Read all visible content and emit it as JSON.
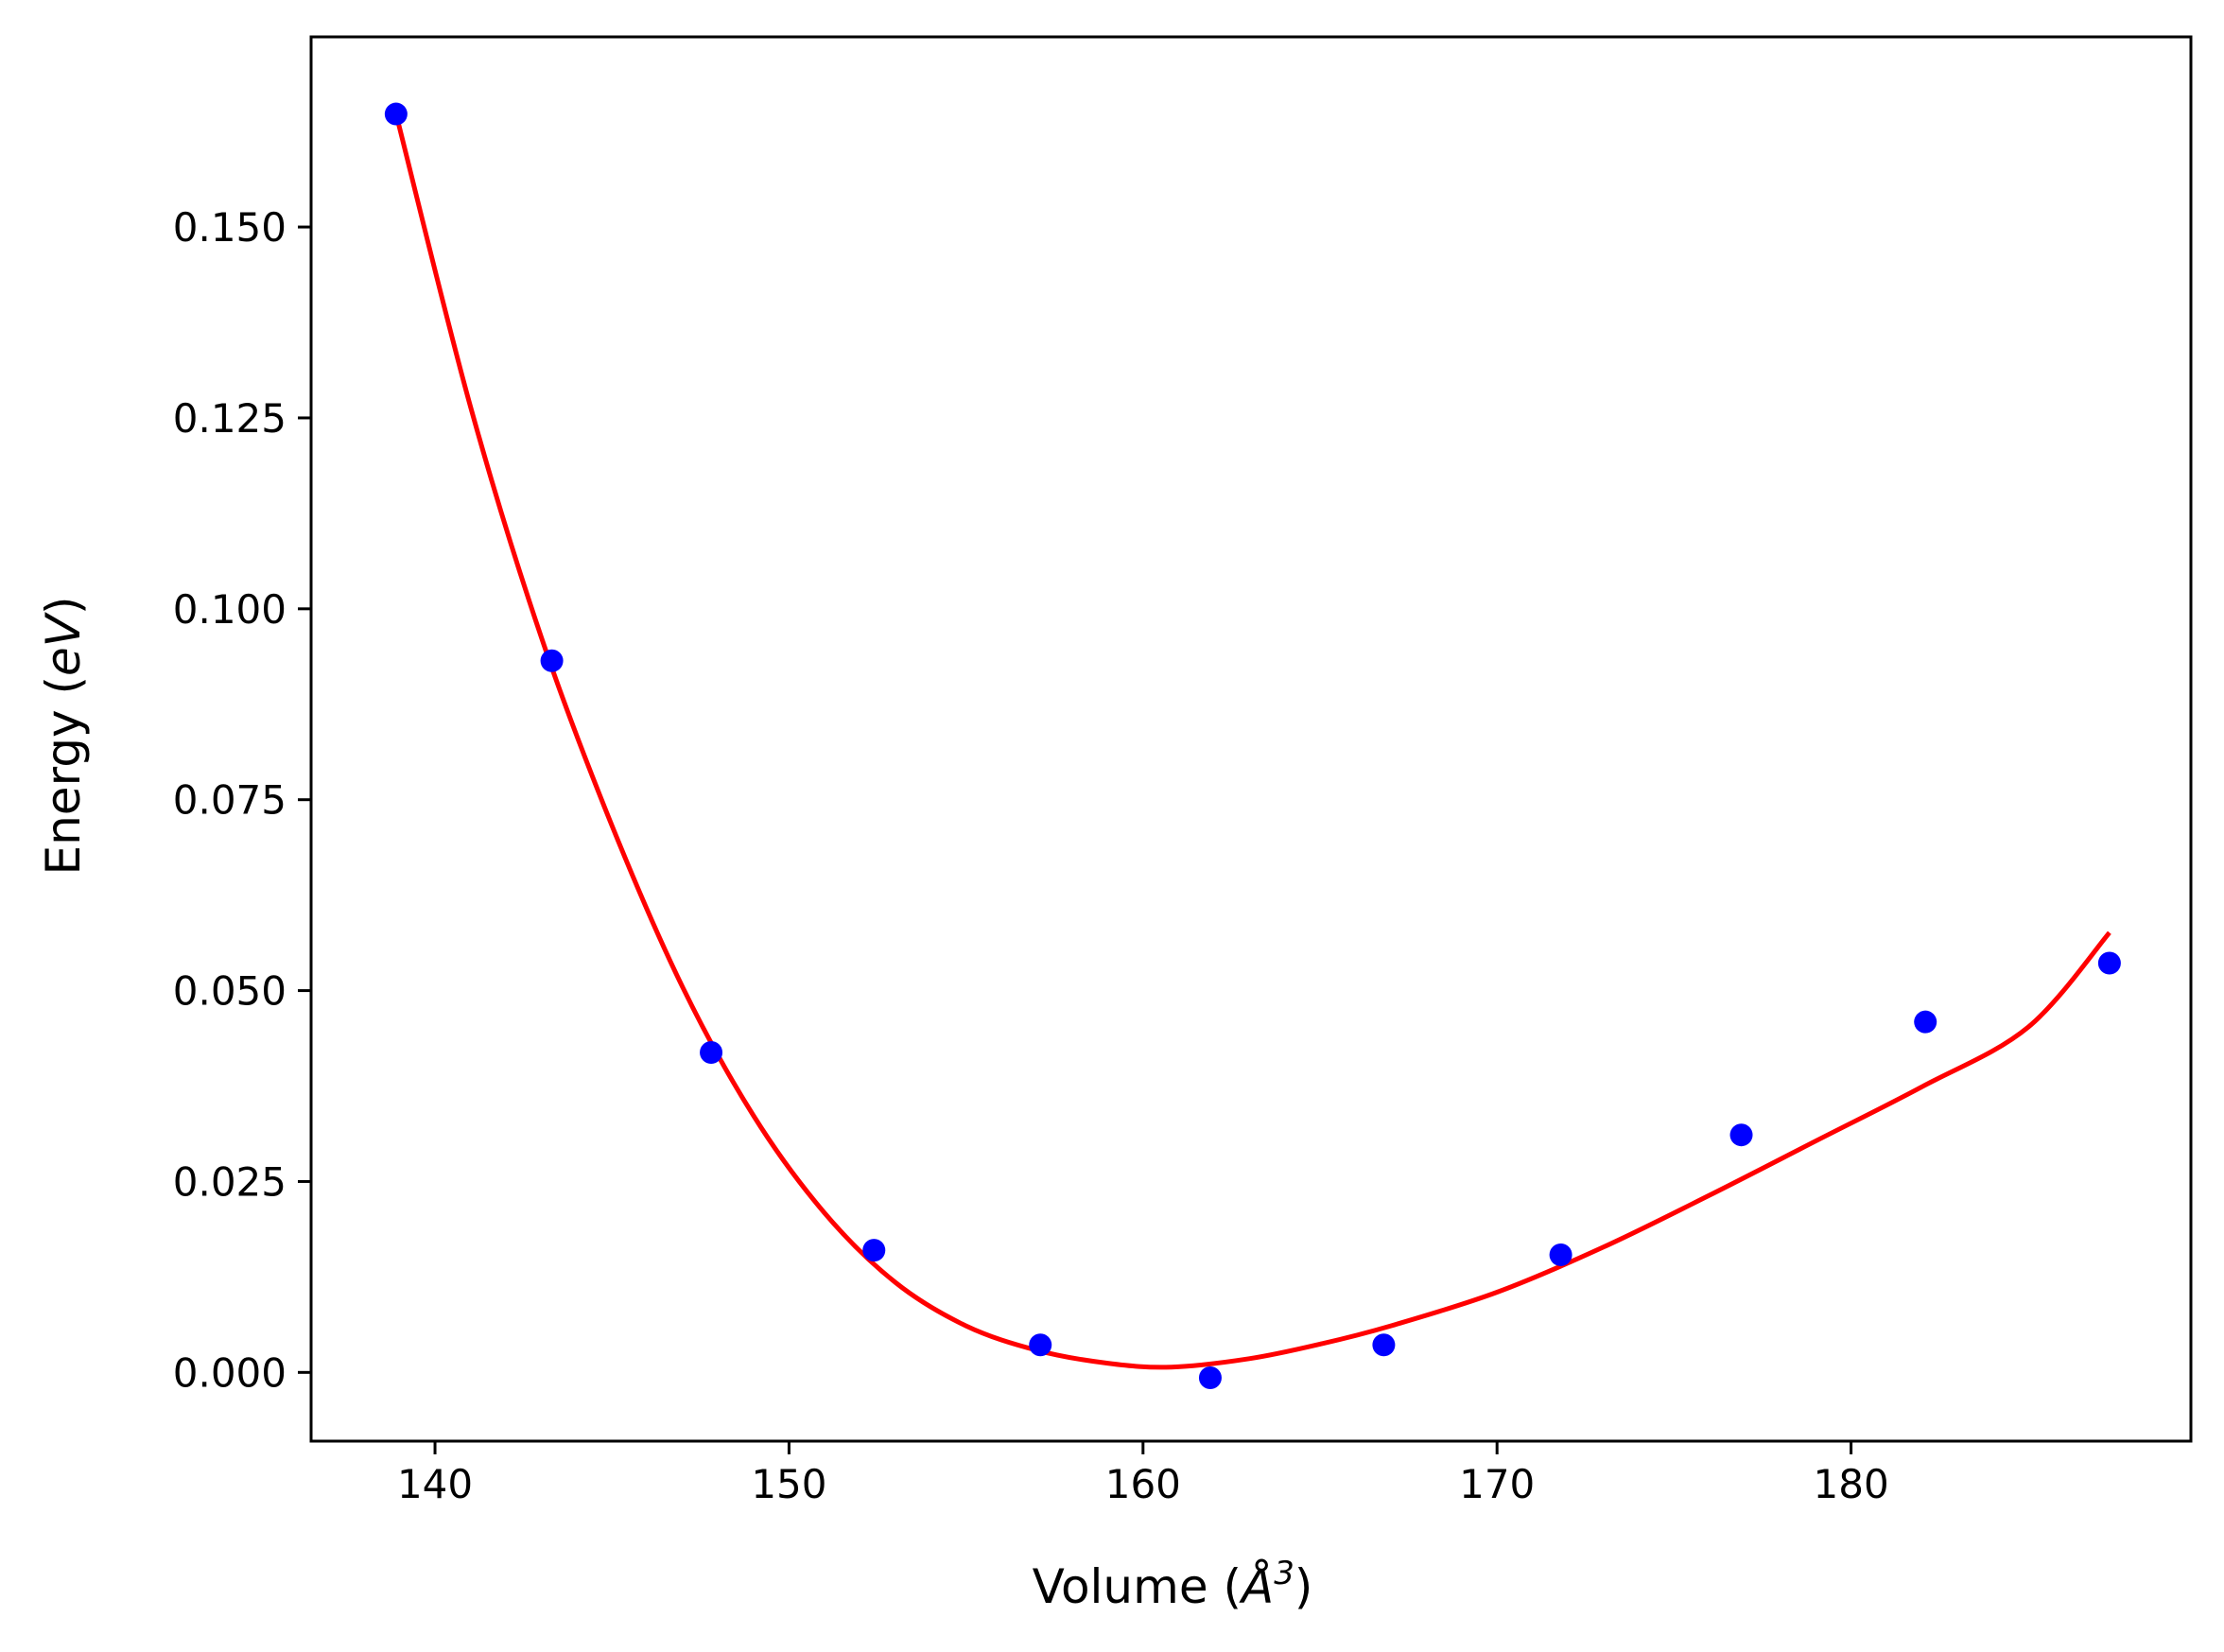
{
  "chart_data": {
    "type": "scatter",
    "xlabel": "Volume (",
    "xlabel_symbol": "Å",
    "xlabel_power": "3",
    "xlabel_close": ")",
    "ylabel": "Energy (",
    "ylabel_unit": "eV",
    "ylabel_close": ")",
    "xlim": [
      136.5,
      189.6
    ],
    "ylim": [
      -0.009,
      0.1749
    ],
    "xticks": [
      140,
      150,
      160,
      170,
      180
    ],
    "xtick_labels": [
      "140",
      "150",
      "160",
      "170",
      "180"
    ],
    "yticks": [
      0.0,
      0.025,
      0.05,
      0.075,
      0.1,
      0.125,
      0.15
    ],
    "ytick_labels": [
      "0.000",
      "0.025",
      "0.050",
      "0.075",
      "0.100",
      "0.125",
      "0.150"
    ],
    "grid": false,
    "legend": "none",
    "series": [
      {
        "kind": "points",
        "color": "#0000ff",
        "x": [
          138.9,
          143.3,
          147.8,
          152.4,
          157.1,
          161.9,
          166.8,
          171.8,
          176.9,
          182.1,
          187.3
        ],
        "y": [
          0.1648,
          0.0932,
          0.0419,
          0.016,
          0.0036,
          -0.0007,
          0.0036,
          0.0154,
          0.0311,
          0.0459,
          0.0536
        ]
      },
      {
        "kind": "line",
        "color": "#ff0000",
        "x": [
          138.9,
          141.0,
          143.0,
          145.0,
          147.0,
          149.0,
          151.0,
          153.0,
          155.0,
          157.0,
          159.0,
          160.8,
          163.0,
          165.0,
          167.0,
          170.0,
          173.0,
          176.0,
          179.0,
          182.0,
          185.0,
          187.3
        ],
        "y": [
          0.1648,
          0.1265,
          0.0963,
          0.0716,
          0.0504,
          0.0336,
          0.0209,
          0.0118,
          0.0061,
          0.0029,
          0.0012,
          0.0007,
          0.0018,
          0.0037,
          0.0061,
          0.0105,
          0.0164,
          0.0232,
          0.0303,
          0.0374,
          0.0452,
          0.0576
        ]
      }
    ]
  }
}
